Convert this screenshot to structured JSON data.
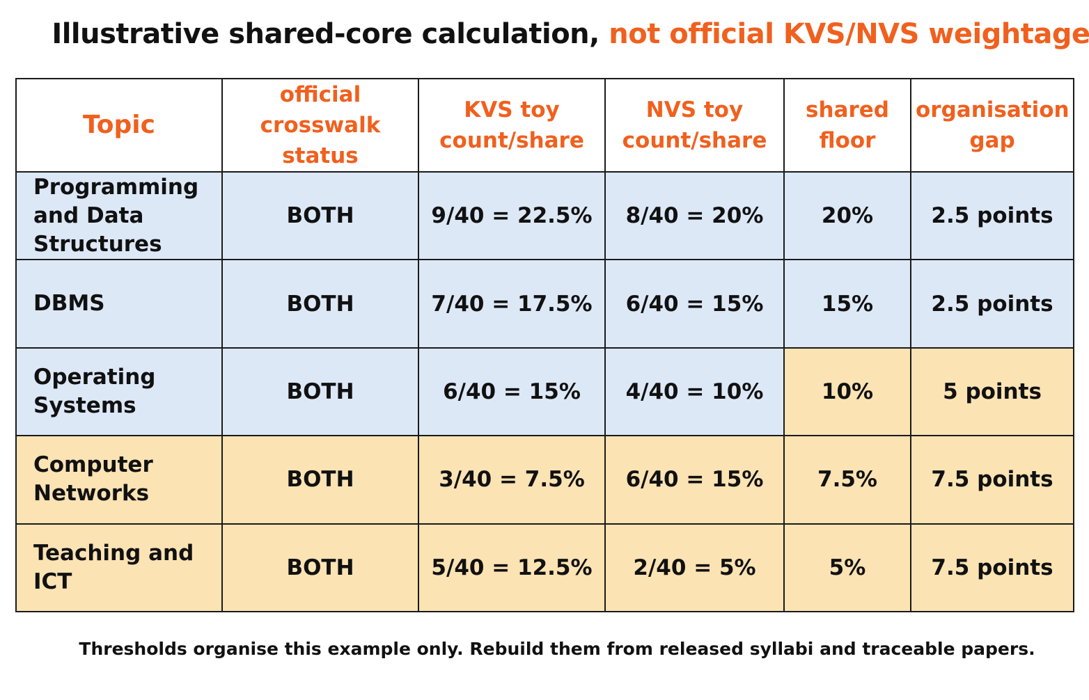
{
  "title": {
    "main": "Illustrative shared-core calculation, ",
    "accent": "not official KVS/NVS weightage"
  },
  "colors": {
    "accent": "#f0601e",
    "shared_fill": "#dde8f7",
    "gap_fill": "#fbe3b4"
  },
  "headers": {
    "topic": "Topic",
    "status": "official crosswalk status",
    "kvs": "KVS toy count/share",
    "nvs": "NVS toy count/share",
    "floor": "shared floor",
    "gap": "organisation gap"
  },
  "rows": [
    {
      "topic": "Programming and Data Structures",
      "status": "BOTH",
      "kvs": "9/40 = 22.5%",
      "nvs": "8/40 = 20%",
      "floor": "20%",
      "gap": "2.5 points"
    },
    {
      "topic": "DBMS",
      "status": "BOTH",
      "kvs": "7/40 = 17.5%",
      "nvs": "6/40 = 15%",
      "floor": "15%",
      "gap": "2.5 points"
    },
    {
      "topic": "Operating Systems",
      "status": "BOTH",
      "kvs": "6/40 = 15%",
      "nvs": "4/40 = 10%",
      "floor": "10%",
      "gap": "5 points"
    },
    {
      "topic": "Computer Networks",
      "status": "BOTH",
      "kvs": "3/40 = 7.5%",
      "nvs": "6/40 = 15%",
      "floor": "7.5%",
      "gap": "7.5 points"
    },
    {
      "topic": "Teaching and ICT",
      "status": "BOTH",
      "kvs": "5/40 = 12.5%",
      "nvs": "2/40 = 5%",
      "floor": "5%",
      "gap": "7.5 points"
    }
  ],
  "footer": "Thresholds organise this example only. Rebuild them from released syllabi and traceable papers."
}
